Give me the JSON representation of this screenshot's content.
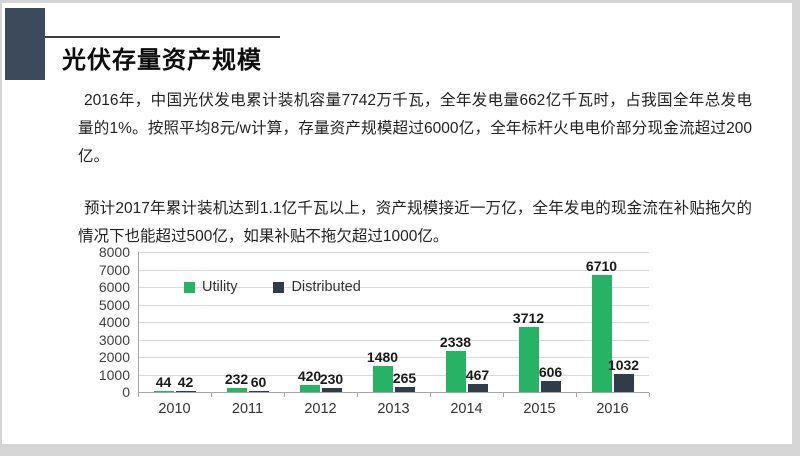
{
  "slide": {
    "title": "光伏存量资产规模",
    "paragraph1": "2016年，中国光伏发电累计装机容量7742万千瓦，全年发电量662亿千瓦时，占我国全年总发电量的1%。按照平均8元/w计算，存量资产规模超过6000亿，全年标杆火电电价部分现金流超过200亿。",
    "paragraph2": "预计2017年累计装机达到1.1亿千瓦以上，资产规模接近一万亿，全年发电的现金流在补贴拖欠的情况下也能超过500亿，如果补贴不拖欠超过1000亿。"
  },
  "colors": {
    "accent_block": "#3d4a5c",
    "utility_green": "#27b265",
    "distributed_navy": "#313c4b",
    "gridline": "#d9d9d9",
    "frame_gray": "#d5d5d6"
  },
  "chart_data": {
    "type": "bar",
    "categories": [
      "2010",
      "2011",
      "2012",
      "2013",
      "2014",
      "2015",
      "2016"
    ],
    "series": [
      {
        "name": "Utility",
        "color": "#27b265",
        "values": [
          44,
          232,
          420,
          1480,
          2338,
          3712,
          6710
        ]
      },
      {
        "name": "Distributed",
        "color": "#313c4b",
        "values": [
          42,
          60,
          230,
          265,
          467,
          606,
          1032
        ]
      }
    ],
    "title": "",
    "xlabel": "",
    "ylabel": "",
    "ylim": [
      0,
      8000
    ],
    "ytick_step": 1000,
    "grid": true,
    "legend_position": "inside-top-left",
    "data_labels": true
  }
}
